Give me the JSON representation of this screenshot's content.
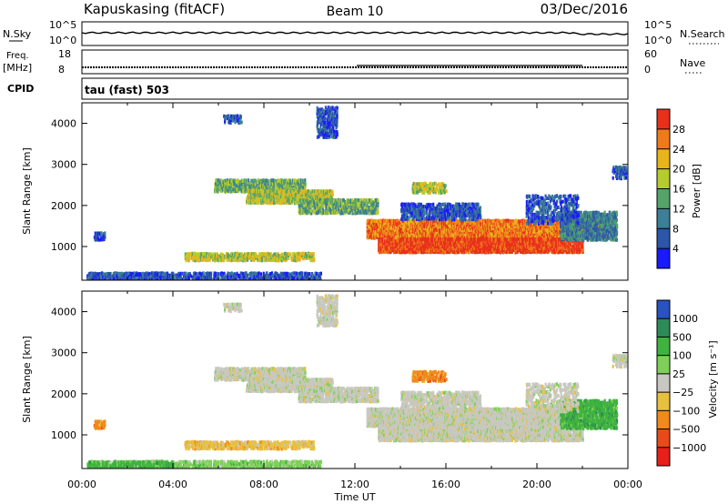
{
  "header": {
    "station": "Kapuskasing (fitACF)",
    "beam": "Beam 10",
    "date": "03/Dec/2016"
  },
  "strips": {
    "nsky_label": "N.Sky",
    "nsearch_label": "N.Search",
    "nsky_ticks": [
      "10^5",
      "10^0"
    ],
    "nsearch_ticks": [
      "10^5",
      "10^0"
    ],
    "freq_label": "Freq.",
    "freq_unit": "[MHz]",
    "freq_ticks": [
      "18",
      "8"
    ],
    "nave_label": "Nave",
    "nave_ticks": [
      "60",
      "0"
    ],
    "cpid_label": "CPID",
    "cpid_value": "tau (fast) 503"
  },
  "chart_data": [
    {
      "type": "heatmap",
      "title": "",
      "quantity": "Power",
      "xlabel": "",
      "ylabel": "Slant Range [km]",
      "x_ticks": [
        "00:00",
        "04:00",
        "08:00",
        "12:00",
        "16:00",
        "20:00",
        "00:00"
      ],
      "xlim_hours": [
        0,
        24
      ],
      "ylim_km": [
        180,
        4500
      ],
      "y_ticks": [
        1000,
        2000,
        3000,
        4000
      ],
      "colorbar_label": "Power [dB]",
      "colorbar_ticks": [
        "4",
        "8",
        "12",
        "16",
        "20",
        "24",
        "28"
      ],
      "colorbar_colors": [
        "#1a1aff",
        "#2c57a8",
        "#3c7f96",
        "#55a36a",
        "#b5cc2f",
        "#e8b41c",
        "#f07a1a",
        "#e8301c"
      ],
      "legend_position": "right"
    },
    {
      "type": "heatmap",
      "title": "",
      "quantity": "Velocity",
      "xlabel": "Time UT",
      "ylabel": "Slant Range [km]",
      "x_ticks": [
        "00:00",
        "04:00",
        "08:00",
        "12:00",
        "16:00",
        "20:00",
        "00:00"
      ],
      "xlim_hours": [
        0,
        24
      ],
      "ylim_km": [
        180,
        4500
      ],
      "y_ticks": [
        1000,
        2000,
        3000,
        4000
      ],
      "colorbar_label": "Velocity [m s⁻¹]",
      "colorbar_ticks": [
        "1000",
        "500",
        "100",
        "25",
        "−25",
        "−100",
        "−500",
        "−1000"
      ],
      "colorbar_colors": [
        "#2a52c0",
        "#2e8b57",
        "#3fb33f",
        "#7fd05a",
        "#c8c8c0",
        "#e8c040",
        "#f08a1a",
        "#e84a1a",
        "#e8201a"
      ],
      "legend_position": "right"
    }
  ]
}
